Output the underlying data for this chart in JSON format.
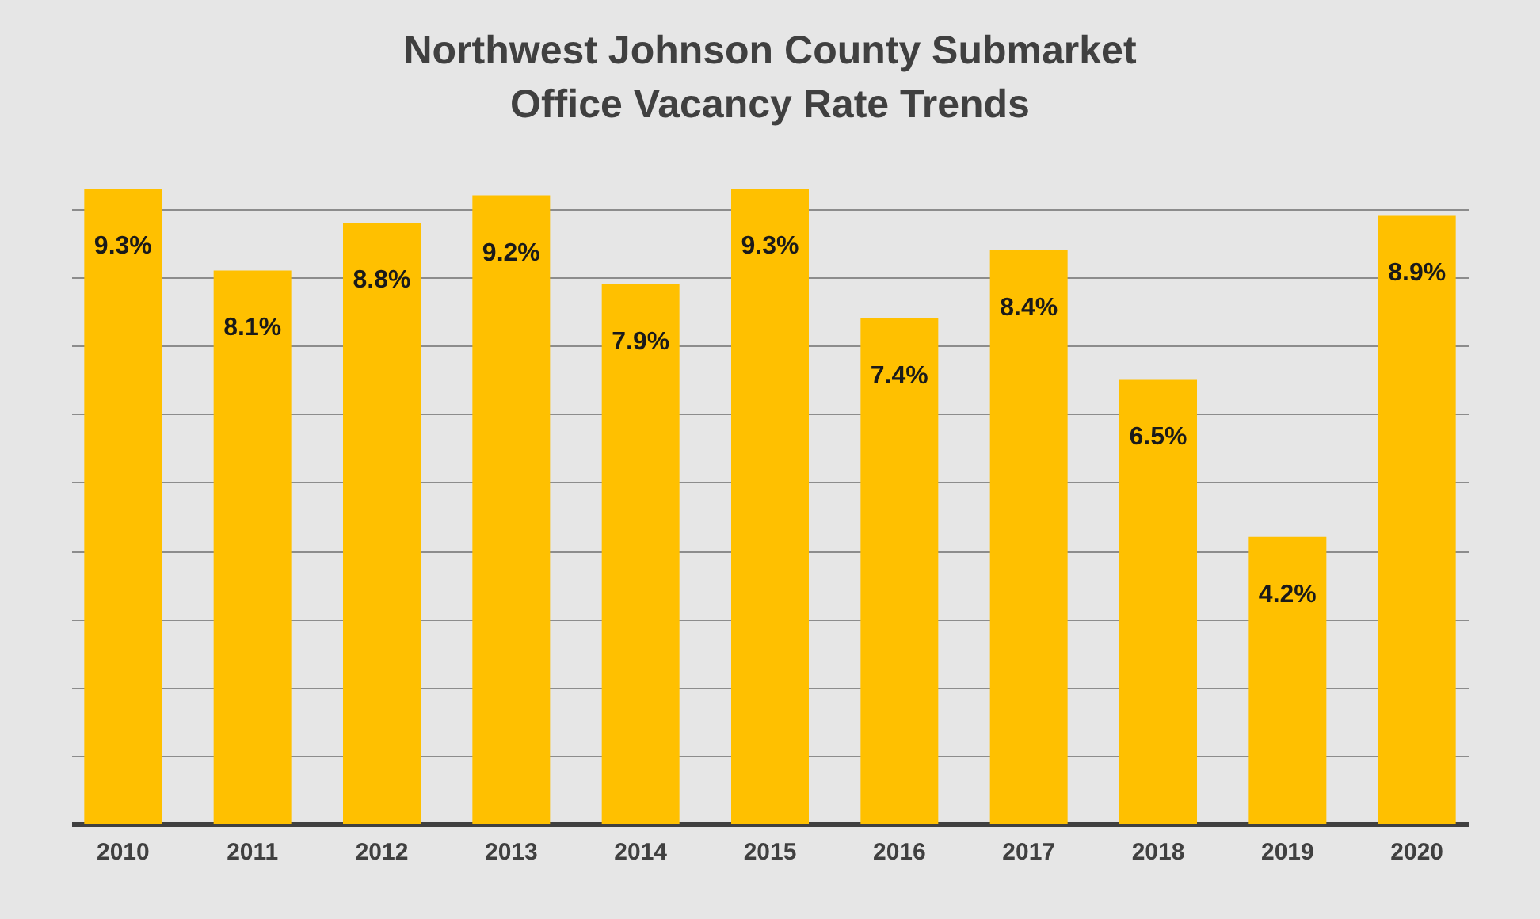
{
  "chart_data": {
    "type": "bar",
    "title": "Northwest Johnson County Submarket\nOffice Vacancy Rate Trends",
    "categories": [
      "2010",
      "2011",
      "2012",
      "2013",
      "2014",
      "2015",
      "2016",
      "2017",
      "2018",
      "2019",
      "2020"
    ],
    "values": [
      9.3,
      8.1,
      8.8,
      9.2,
      7.9,
      9.3,
      7.4,
      8.4,
      6.5,
      4.2,
      8.9
    ],
    "value_labels": [
      "9.3%",
      "8.1%",
      "8.8%",
      "9.2%",
      "7.9%",
      "9.3%",
      "7.4%",
      "8.4%",
      "6.5%",
      "4.2%",
      "8.9%"
    ],
    "color": "#ffc000",
    "yticks": [
      {
        "value": 0,
        "label": null
      },
      {
        "value": 1,
        "label": null
      },
      {
        "value": 2,
        "label": null
      },
      {
        "value": 3,
        "label": null
      },
      {
        "value": 4,
        "label": null
      },
      {
        "value": 5,
        "label": null
      },
      {
        "value": 6,
        "label": null
      },
      {
        "value": 7,
        "label": null
      },
      {
        "value": 8,
        "label": null
      },
      {
        "value": 9,
        "label": null
      }
    ],
    "grid": "y",
    "tick_labels": "x"
  }
}
